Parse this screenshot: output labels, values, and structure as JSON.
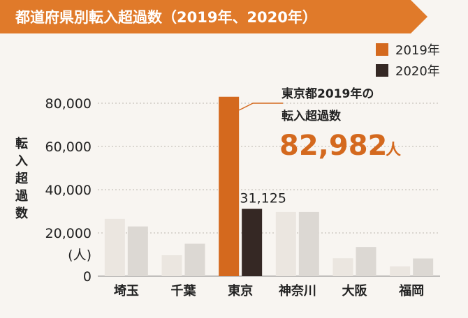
{
  "colors": {
    "header_bg": "#e07a2a",
    "panel_bg": "#f8f5f1",
    "series_2019": "#d4691e",
    "series_2020": "#352824",
    "other_2019": "#ebe6e0",
    "other_2020": "#dcd8d3",
    "accent_text": "#d4691e",
    "text": "#222222",
    "grid": "#bdb6ae"
  },
  "chart_data": {
    "type": "bar",
    "title": "都道府県別転入超過数（2019年、2020年）",
    "ylabel": "転入超過数",
    "unit_label": "(人)",
    "ylim": [
      0,
      80000
    ],
    "yticks": [
      0,
      20000,
      40000,
      60000,
      80000
    ],
    "ytick_labels": [
      "0",
      "20,000",
      "40,000",
      "60,000",
      "80,000"
    ],
    "categories": [
      "埼玉",
      "千葉",
      "東京",
      "神奈川",
      "大阪",
      "福岡"
    ],
    "highlight_category": "東京",
    "series": [
      {
        "name": "2019年",
        "values": [
          26500,
          9700,
          82982,
          29700,
          8300,
          4500
        ]
      },
      {
        "name": "2020年",
        "values": [
          23000,
          15000,
          31125,
          29700,
          13500,
          8200
        ]
      }
    ],
    "data_labels": [
      {
        "category": "東京",
        "series": "2020年",
        "text": "31,125"
      }
    ],
    "annotation": {
      "line1": "東京都2019年の",
      "line2": "転入超過数",
      "value": "82,982",
      "unit": "人"
    },
    "legend_position": "top-right"
  }
}
